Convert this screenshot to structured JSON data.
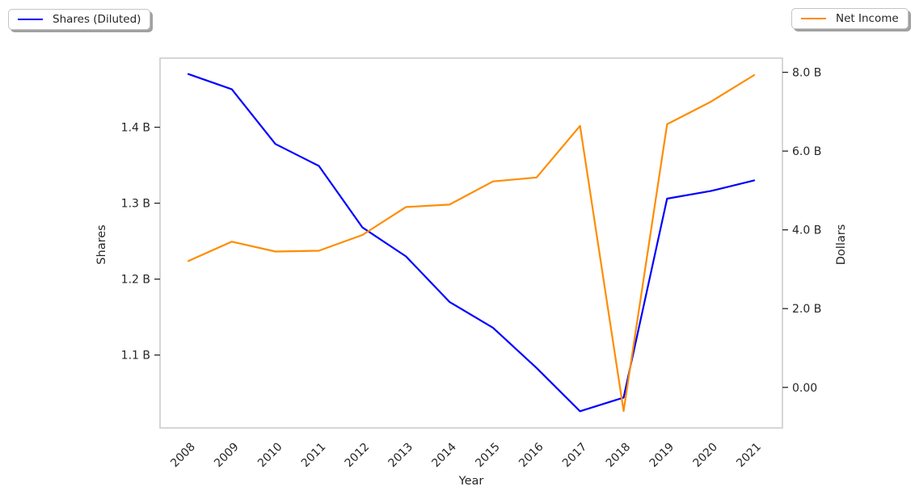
{
  "figure": {
    "background": "#ffffff",
    "text_color": "#262626",
    "spine_color": "#d2d2d2",
    "legends": {
      "shares": {
        "label": "Shares (Diluted)",
        "position": "top-left"
      },
      "net_income": {
        "label": "Net Income",
        "position": "top-right"
      }
    }
  },
  "chart_data": {
    "type": "line",
    "title": "",
    "xlabel": "Year",
    "ylabel_left": "Shares",
    "ylabel_right": "Dollars",
    "unit": "billions",
    "grid": false,
    "categories": [
      "2008",
      "2009",
      "2010",
      "2011",
      "2012",
      "2013",
      "2014",
      "2015",
      "2016",
      "2017",
      "2018",
      "2019",
      "2020",
      "2021"
    ],
    "series": [
      {
        "name": "Shares (Diluted)",
        "axis": "left",
        "color": "#0000ff",
        "values": [
          1.47,
          1.45,
          1.378,
          1.349,
          1.268,
          1.23,
          1.17,
          1.136,
          1.083,
          1.026,
          1.044,
          1.306,
          1.316,
          1.33
        ]
      },
      {
        "name": "Net Income",
        "axis": "right",
        "color": "#ff8c00",
        "values": [
          3.21,
          3.7,
          3.45,
          3.47,
          3.87,
          4.58,
          4.64,
          5.23,
          5.33,
          6.64,
          -0.6,
          6.68,
          7.25,
          7.93
        ]
      }
    ],
    "ylim_left": [
      1.004,
      1.491
    ],
    "ylim_right": [
      -1.03,
      8.36
    ],
    "x_margin_frac": 0.05,
    "y_left_ticks": [
      {
        "value": 1.1,
        "label": "1.1 B"
      },
      {
        "value": 1.2,
        "label": "1.2 B"
      },
      {
        "value": 1.3,
        "label": "1.3 B"
      },
      {
        "value": 1.4,
        "label": "1.4 B"
      }
    ],
    "y_right_ticks": [
      {
        "value": 0.0,
        "label": "0.00"
      },
      {
        "value": 2.0,
        "label": "2.0 B"
      },
      {
        "value": 4.0,
        "label": "4.0 B"
      },
      {
        "value": 6.0,
        "label": "6.0 B"
      },
      {
        "value": 8.0,
        "label": "8.0 B"
      }
    ]
  }
}
